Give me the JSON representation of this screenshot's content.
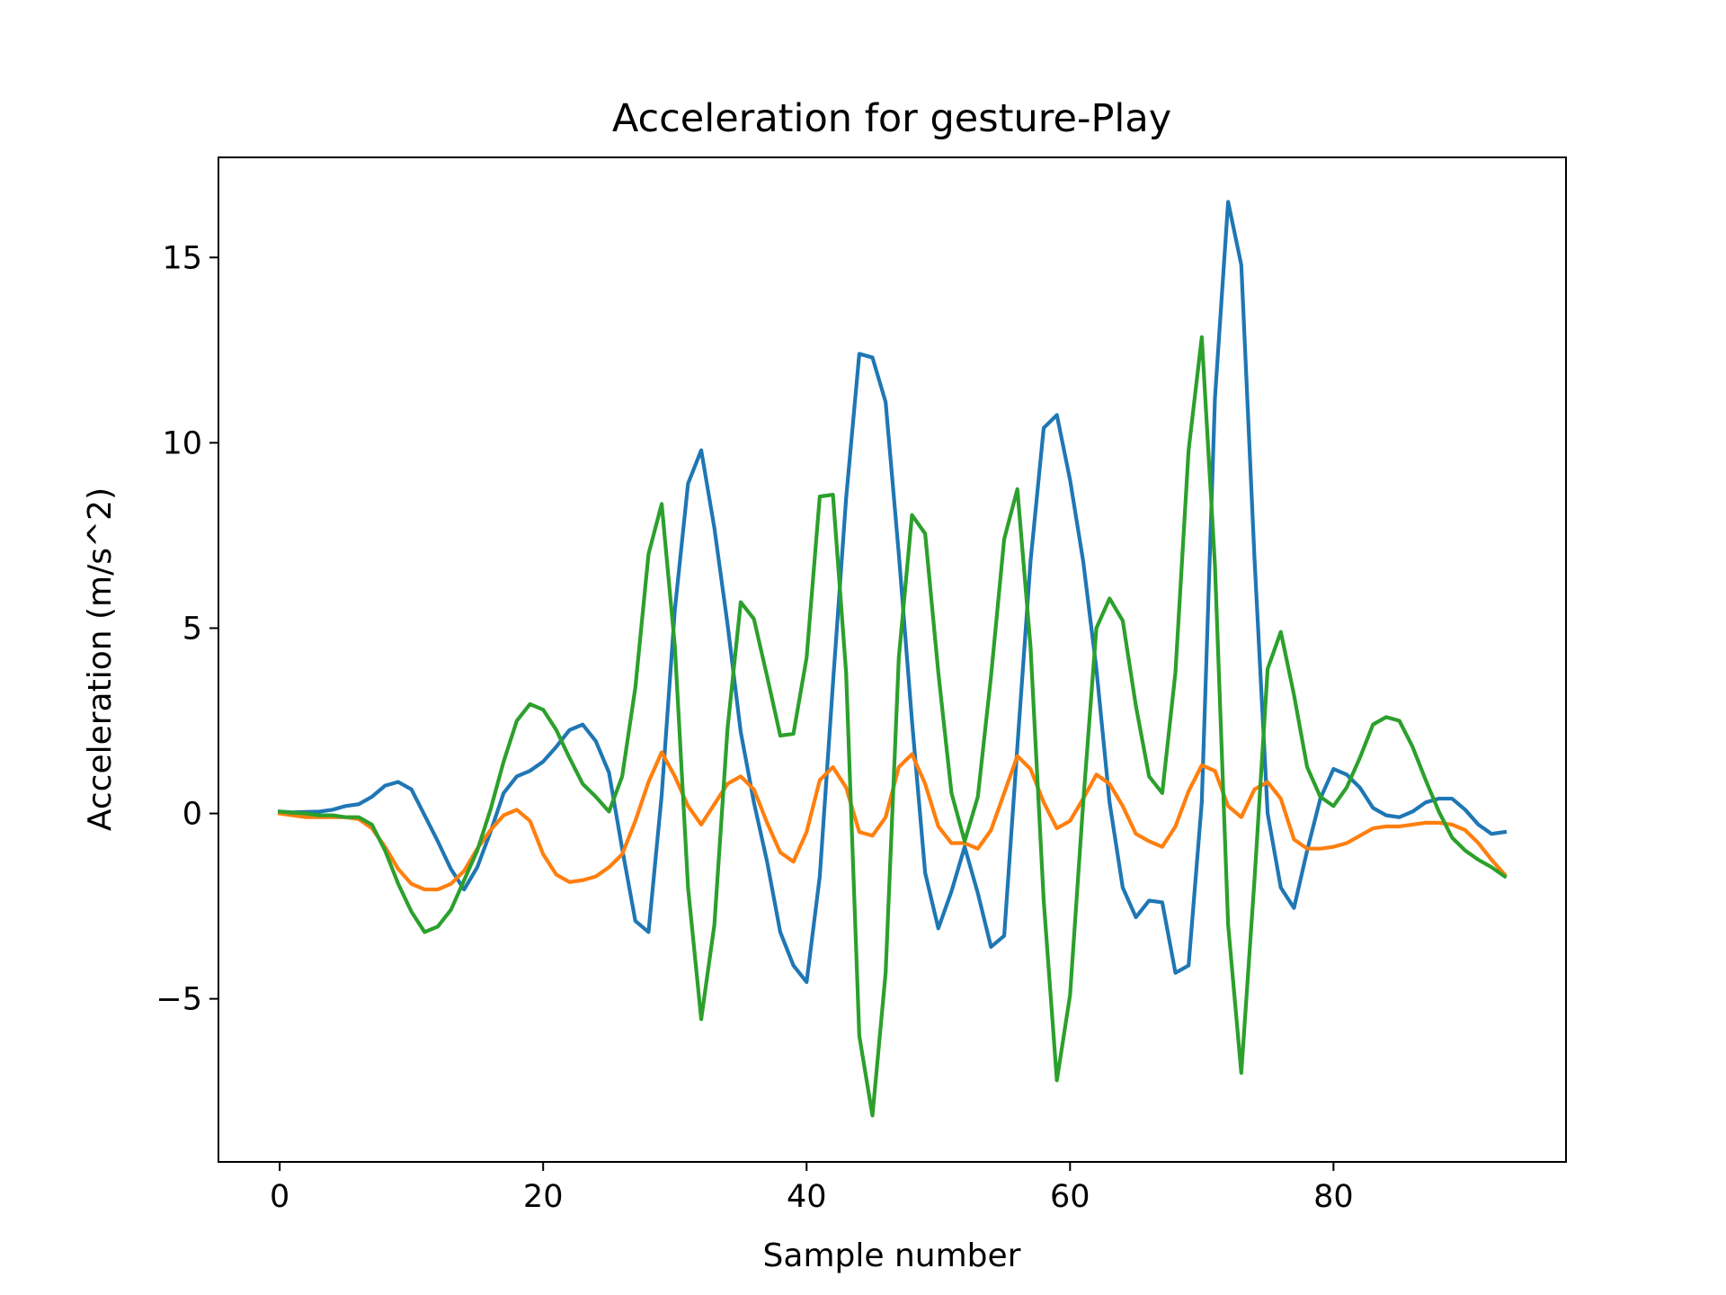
{
  "chart_data": {
    "type": "line",
    "title": "Acceleration for gesture-Play",
    "xlabel": "Sample number",
    "ylabel": "Acceleration (m/s^2)",
    "xlim": [
      -4.65,
      97.65
    ],
    "ylim": [
      -9.4,
      17.7
    ],
    "xticks": [
      0,
      20,
      40,
      60,
      80
    ],
    "yticks": [
      -5,
      0,
      5,
      10,
      15
    ],
    "ytick_labels": [
      "−5",
      "0",
      "5",
      "10",
      "15"
    ],
    "grid": false,
    "legend": "none",
    "x_start": 0,
    "series": [
      {
        "color": "#1f77b4",
        "values": [
          0.05,
          0.03,
          0.04,
          0.05,
          0.1,
          0.2,
          0.25,
          0.45,
          0.75,
          0.85,
          0.65,
          -0.05,
          -0.75,
          -1.5,
          -2.05,
          -1.45,
          -0.5,
          0.55,
          1.0,
          1.15,
          1.4,
          1.8,
          2.25,
          2.4,
          1.95,
          1.1,
          -0.95,
          -2.9,
          -3.2,
          0.5,
          5.5,
          8.9,
          9.8,
          7.7,
          5.1,
          2.2,
          0.3,
          -1.3,
          -3.2,
          -4.1,
          -4.55,
          -1.7,
          3.5,
          8.5,
          12.4,
          12.3,
          11.1,
          7.0,
          2.5,
          -1.6,
          -3.1,
          -2.1,
          -0.9,
          -2.15,
          -3.6,
          -3.3,
          1.8,
          6.8,
          10.4,
          10.75,
          9.0,
          6.8,
          3.9,
          0.3,
          -2.0,
          -2.8,
          -2.35,
          -2.4,
          -4.3,
          -4.1,
          0.3,
          11.2,
          16.5,
          14.8,
          6.9,
          0.0,
          -2.0,
          -2.55,
          -1.0,
          0.4,
          1.2,
          1.05,
          0.7,
          0.15,
          -0.05,
          -0.1,
          0.05,
          0.3,
          0.4,
          0.4,
          0.1,
          -0.3,
          -0.55,
          -0.5
        ]
      },
      {
        "color": "#ff7f0e",
        "values": [
          0.0,
          -0.05,
          -0.1,
          -0.1,
          -0.1,
          -0.1,
          -0.15,
          -0.4,
          -0.9,
          -1.5,
          -1.9,
          -2.05,
          -2.05,
          -1.9,
          -1.55,
          -0.95,
          -0.45,
          -0.05,
          0.1,
          -0.2,
          -1.1,
          -1.65,
          -1.85,
          -1.8,
          -1.7,
          -1.45,
          -1.1,
          -0.2,
          0.85,
          1.65,
          1.0,
          0.2,
          -0.3,
          0.25,
          0.8,
          1.0,
          0.65,
          -0.25,
          -1.05,
          -1.3,
          -0.5,
          0.9,
          1.25,
          0.7,
          -0.5,
          -0.6,
          -0.1,
          1.25,
          1.6,
          0.8,
          -0.35,
          -0.8,
          -0.8,
          -0.95,
          -0.45,
          0.55,
          1.55,
          1.2,
          0.3,
          -0.4,
          -0.2,
          0.4,
          1.05,
          0.8,
          0.2,
          -0.55,
          -0.75,
          -0.9,
          -0.35,
          0.6,
          1.3,
          1.15,
          0.2,
          -0.1,
          0.65,
          0.85,
          0.4,
          -0.7,
          -0.95,
          -0.95,
          -0.9,
          -0.8,
          -0.6,
          -0.4,
          -0.35,
          -0.35,
          -0.3,
          -0.25,
          -0.25,
          -0.3,
          -0.45,
          -0.8,
          -1.25,
          -1.65
        ]
      },
      {
        "color": "#2ca02c",
        "values": [
          0.05,
          0.02,
          0.0,
          -0.05,
          -0.05,
          -0.1,
          -0.1,
          -0.3,
          -1.0,
          -1.9,
          -2.65,
          -3.2,
          -3.05,
          -2.6,
          -1.8,
          -1.0,
          0.1,
          1.4,
          2.5,
          2.95,
          2.8,
          2.25,
          1.5,
          0.8,
          0.45,
          0.05,
          1.0,
          3.4,
          7.0,
          8.35,
          4.5,
          -2.0,
          -5.55,
          -3.0,
          2.3,
          5.7,
          5.25,
          3.7,
          2.1,
          2.15,
          4.2,
          8.55,
          8.6,
          3.8,
          -6.0,
          -8.15,
          -4.3,
          4.2,
          8.05,
          7.55,
          3.8,
          0.55,
          -0.75,
          0.45,
          3.7,
          7.4,
          8.75,
          4.5,
          -2.35,
          -7.2,
          -4.9,
          0.3,
          5.0,
          5.8,
          5.2,
          2.9,
          1.0,
          0.55,
          3.8,
          9.8,
          12.85,
          6.7,
          -3.0,
          -7.0,
          -1.8,
          3.9,
          4.9,
          3.2,
          1.25,
          0.45,
          0.2,
          0.7,
          1.5,
          2.4,
          2.6,
          2.5,
          1.8,
          0.9,
          0.05,
          -0.65,
          -1.0,
          -1.25,
          -1.45,
          -1.7
        ]
      }
    ]
  }
}
